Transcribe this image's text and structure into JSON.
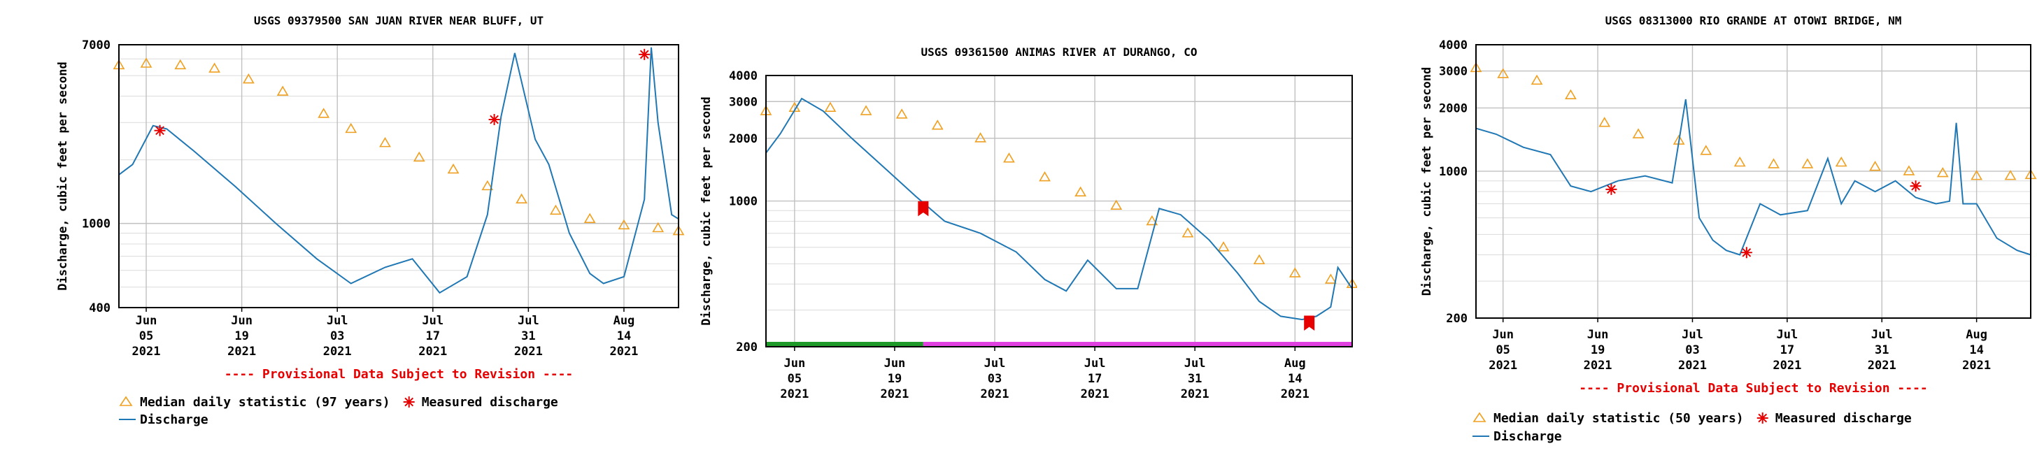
{
  "chart_data": [
    {
      "type": "line",
      "title": "USGS 09379500 SAN JUAN RIVER NEAR BLUFF, UT",
      "ylabel": "Discharge, cubic feet per second",
      "y_scale": "log",
      "ylim": [
        400,
        7000
      ],
      "ytick_values": [
        400,
        1000,
        7000
      ],
      "ytick_labels": [
        "400",
        "1000",
        "7000"
      ],
      "xlim": [
        "2021-06-01",
        "2021-08-22"
      ],
      "xticks": [
        {
          "date": "2021-06-05",
          "l1": "Jun",
          "l2": "05",
          "l3": "2021"
        },
        {
          "date": "2021-06-19",
          "l1": "Jun",
          "l2": "19",
          "l3": "2021"
        },
        {
          "date": "2021-07-03",
          "l1": "Jul",
          "l2": "03",
          "l3": "2021"
        },
        {
          "date": "2021-07-17",
          "l1": "Jul",
          "l2": "17",
          "l3": "2021"
        },
        {
          "date": "2021-07-31",
          "l1": "Jul",
          "l2": "31",
          "l3": "2021"
        },
        {
          "date": "2021-08-14",
          "l1": "Aug",
          "l2": "14",
          "l3": "2021"
        }
      ],
      "grid": true,
      "provisional_note": "---- Provisional Data Subject to Revision ----",
      "legend_items": [
        "Median daily statistic (97 years)",
        "Measured discharge",
        "Discharge"
      ],
      "series": [
        {
          "name": "Median daily statistic (97 years)",
          "color": "#f0a020",
          "marker": "triangle",
          "x": [
            "2021-06-01",
            "2021-06-05",
            "2021-06-10",
            "2021-06-15",
            "2021-06-20",
            "2021-06-25",
            "2021-07-01",
            "2021-07-05",
            "2021-07-10",
            "2021-07-15",
            "2021-07-20",
            "2021-07-25",
            "2021-07-30",
            "2021-08-04",
            "2021-08-09",
            "2021-08-14",
            "2021-08-19",
            "2021-08-22"
          ],
          "y": [
            5600,
            5700,
            5600,
            5400,
            4800,
            4200,
            3300,
            2800,
            2400,
            2050,
            1800,
            1500,
            1300,
            1150,
            1050,
            980,
            950,
            920
          ]
        },
        {
          "name": "Discharge",
          "color": "#1f77b4",
          "marker": "none",
          "x": [
            "2021-06-01",
            "2021-06-03",
            "2021-06-06",
            "2021-06-08",
            "2021-06-12",
            "2021-06-18",
            "2021-06-24",
            "2021-06-30",
            "2021-07-05",
            "2021-07-10",
            "2021-07-14",
            "2021-07-18",
            "2021-07-22",
            "2021-07-25",
            "2021-07-27",
            "2021-07-29",
            "2021-08-01",
            "2021-08-03",
            "2021-08-06",
            "2021-08-09",
            "2021-08-11",
            "2021-08-14",
            "2021-08-17",
            "2021-08-18",
            "2021-08-19",
            "2021-08-21",
            "2021-08-22"
          ],
          "y": [
            1700,
            1900,
            2900,
            2800,
            2200,
            1500,
            1000,
            680,
            520,
            620,
            680,
            470,
            560,
            1100,
            3200,
            6400,
            2500,
            1900,
            900,
            580,
            520,
            560,
            1300,
            6800,
            3000,
            1100,
            1050
          ]
        },
        {
          "name": "Measured discharge",
          "color": "#e60000",
          "marker": "asterisk",
          "x": [
            "2021-06-07",
            "2021-07-26",
            "2021-08-17"
          ],
          "y": [
            2750,
            3100,
            6300
          ]
        }
      ]
    },
    {
      "type": "line",
      "title": "USGS 09361500 ANIMAS RIVER AT DURANGO, CO",
      "ylabel": "Discharge, cubic feet per second",
      "y_scale": "log",
      "ylim": [
        200,
        4000
      ],
      "ytick_values": [
        200,
        1000,
        2000,
        3000,
        4000
      ],
      "ytick_labels": [
        "200",
        "1000",
        "2000",
        "3000",
        "4000"
      ],
      "xlim": [
        "2021-06-01",
        "2021-08-22"
      ],
      "xticks": [
        {
          "date": "2021-06-05",
          "l1": "Jun",
          "l2": "05",
          "l3": "2021"
        },
        {
          "date": "2021-06-19",
          "l1": "Jun",
          "l2": "19",
          "l3": "2021"
        },
        {
          "date": "2021-07-03",
          "l1": "Jul",
          "l2": "03",
          "l3": "2021"
        },
        {
          "date": "2021-07-17",
          "l1": "Jul",
          "l2": "17",
          "l3": "2021"
        },
        {
          "date": "2021-07-31",
          "l1": "Jul",
          "l2": "31",
          "l3": "2021"
        },
        {
          "date": "2021-08-14",
          "l1": "Aug",
          "l2": "14",
          "l3": "2021"
        }
      ],
      "grid": true,
      "status_bar": [
        {
          "start": "2021-06-01",
          "end": "2021-06-23",
          "color": "#1f9a2a"
        },
        {
          "start": "2021-06-23",
          "end": "2021-08-22",
          "color": "#e040e0"
        }
      ],
      "series": [
        {
          "name": "Median daily statistic",
          "color": "#f0a020",
          "marker": "triangle",
          "x": [
            "2021-06-01",
            "2021-06-05",
            "2021-06-10",
            "2021-06-15",
            "2021-06-20",
            "2021-06-25",
            "2021-07-01",
            "2021-07-05",
            "2021-07-10",
            "2021-07-15",
            "2021-07-20",
            "2021-07-25",
            "2021-07-30",
            "2021-08-04",
            "2021-08-09",
            "2021-08-14",
            "2021-08-19",
            "2021-08-22"
          ],
          "y": [
            2700,
            2800,
            2800,
            2700,
            2600,
            2300,
            2000,
            1600,
            1300,
            1100,
            950,
            800,
            700,
            600,
            520,
            450,
            420,
            400
          ]
        },
        {
          "name": "Discharge",
          "color": "#1f77b4",
          "marker": "none",
          "x": [
            "2021-06-01",
            "2021-06-03",
            "2021-06-06",
            "2021-06-09",
            "2021-06-13",
            "2021-06-18",
            "2021-06-22",
            "2021-06-26",
            "2021-07-01",
            "2021-07-06",
            "2021-07-10",
            "2021-07-13",
            "2021-07-16",
            "2021-07-20",
            "2021-07-23",
            "2021-07-26",
            "2021-07-29",
            "2021-08-02",
            "2021-08-06",
            "2021-08-09",
            "2021-08-12",
            "2021-08-15",
            "2021-08-17",
            "2021-08-19",
            "2021-08-20",
            "2021-08-22"
          ],
          "y": [
            1700,
            2100,
            3100,
            2700,
            2000,
            1400,
            1050,
            800,
            700,
            570,
            420,
            370,
            520,
            380,
            380,
            920,
            860,
            650,
            450,
            330,
            280,
            270,
            280,
            310,
            480,
            380
          ]
        },
        {
          "name": "Measured discharge",
          "color": "#e60000",
          "marker": "flag",
          "x": [
            "2021-06-23",
            "2021-08-16"
          ],
          "y": [
            920,
            260
          ]
        }
      ]
    },
    {
      "type": "line",
      "title": "USGS 08313000 RIO GRANDE AT OTOWI BRIDGE, NM",
      "ylabel": "Discharge, cubic feet per second",
      "y_scale": "log",
      "ylim": [
        200,
        4000
      ],
      "ytick_values": [
        200,
        1000,
        2000,
        3000,
        4000
      ],
      "ytick_labels": [
        "200",
        "1000",
        "2000",
        "3000",
        "4000"
      ],
      "xlim": [
        "2021-06-01",
        "2021-08-22"
      ],
      "xticks": [
        {
          "date": "2021-06-05",
          "l1": "Jun",
          "l2": "05",
          "l3": "2021"
        },
        {
          "date": "2021-06-19",
          "l1": "Jun",
          "l2": "19",
          "l3": "2021"
        },
        {
          "date": "2021-07-03",
          "l1": "Jul",
          "l2": "03",
          "l3": "2021"
        },
        {
          "date": "2021-07-17",
          "l1": "Jul",
          "l2": "17",
          "l3": "2021"
        },
        {
          "date": "2021-07-31",
          "l1": "Jul",
          "l2": "31",
          "l3": "2021"
        },
        {
          "date": "2021-08-14",
          "l1": "Aug",
          "l2": "14",
          "l3": "2021"
        }
      ],
      "grid": true,
      "provisional_note": "---- Provisional Data Subject to Revision ----",
      "legend_items": [
        "Median daily statistic (50 years)",
        "Measured discharge",
        "Discharge"
      ],
      "series": [
        {
          "name": "Median daily statistic (50 years)",
          "color": "#f0a020",
          "marker": "triangle",
          "x": [
            "2021-06-01",
            "2021-06-05",
            "2021-06-10",
            "2021-06-15",
            "2021-06-20",
            "2021-06-25",
            "2021-07-01",
            "2021-07-05",
            "2021-07-10",
            "2021-07-15",
            "2021-07-20",
            "2021-07-25",
            "2021-07-30",
            "2021-08-04",
            "2021-08-09",
            "2021-08-14",
            "2021-08-19",
            "2021-08-22"
          ],
          "y": [
            3100,
            2900,
            2700,
            2300,
            1700,
            1500,
            1400,
            1250,
            1100,
            1080,
            1080,
            1100,
            1050,
            1000,
            980,
            950,
            950,
            960
          ]
        },
        {
          "name": "Discharge",
          "color": "#1f77b4",
          "marker": "none",
          "x": [
            "2021-06-01",
            "2021-06-04",
            "2021-06-08",
            "2021-06-12",
            "2021-06-15",
            "2021-06-18",
            "2021-06-22",
            "2021-06-26",
            "2021-06-30",
            "2021-07-02",
            "2021-07-04",
            "2021-07-06",
            "2021-07-08",
            "2021-07-10",
            "2021-07-13",
            "2021-07-16",
            "2021-07-20",
            "2021-07-23",
            "2021-07-25",
            "2021-07-27",
            "2021-07-30",
            "2021-08-02",
            "2021-08-05",
            "2021-08-08",
            "2021-08-10",
            "2021-08-11",
            "2021-08-12",
            "2021-08-14",
            "2021-08-17",
            "2021-08-20",
            "2021-08-22"
          ],
          "y": [
            1600,
            1500,
            1300,
            1200,
            850,
            800,
            900,
            950,
            880,
            2200,
            600,
            470,
            420,
            400,
            700,
            620,
            650,
            1150,
            700,
            900,
            800,
            900,
            750,
            700,
            720,
            1700,
            700,
            700,
            480,
            420,
            400
          ]
        },
        {
          "name": "Measured discharge",
          "color": "#e60000",
          "marker": "asterisk",
          "x": [
            "2021-06-21",
            "2021-07-11",
            "2021-08-05"
          ],
          "y": [
            820,
            410,
            850
          ]
        }
      ]
    }
  ]
}
